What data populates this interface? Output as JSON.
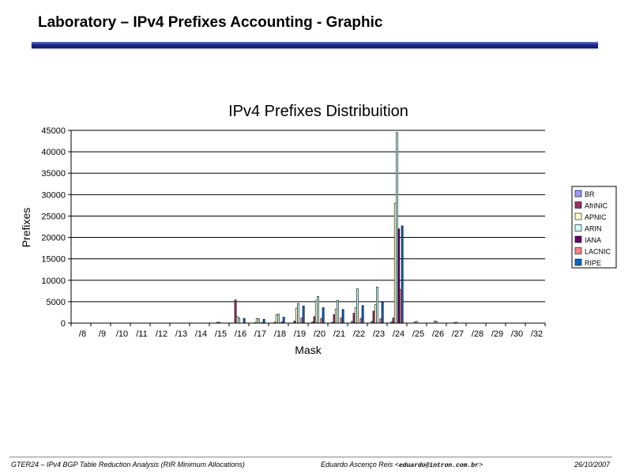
{
  "header": {
    "title": "Laboratory – IPv4 Prefixes Accounting - Graphic"
  },
  "footer": {
    "left": "GTER24 – IPv4 BGP Table Reduction Analysis (RIR Minimum Allocations)",
    "author": "Eduardo Ascenço Reis <",
    "email": "eduardo@intron.com.br",
    "email_close": ">",
    "date": "26/10/2007"
  },
  "chart_data": {
    "type": "bar",
    "title": "IPv4 Prefixes Distribuition",
    "xlabel": "Mask",
    "ylabel": "Prefixes",
    "ylim": [
      0,
      45000
    ],
    "yticks": [
      0,
      5000,
      10000,
      15000,
      20000,
      25000,
      30000,
      35000,
      40000,
      45000
    ],
    "grid": true,
    "legend_position": "right",
    "categories": [
      "/8",
      "/9",
      "/10",
      "/11",
      "/12",
      "/13",
      "/14",
      "/15",
      "/16",
      "/17",
      "/18",
      "/19",
      "/20",
      "/21",
      "/22",
      "/23",
      "/24",
      "/25",
      "/26",
      "/27",
      "/28",
      "/29",
      "/30",
      "/32"
    ],
    "series": [
      {
        "name": "BR",
        "color": "#9999ff",
        "values": [
          0,
          0,
          0,
          0,
          0,
          0,
          0,
          0,
          0,
          0,
          0,
          0,
          300,
          200,
          400,
          400,
          300,
          0,
          0,
          0,
          0,
          0,
          0,
          0
        ]
      },
      {
        "name": "AfriNIC",
        "color": "#993366",
        "values": [
          0,
          0,
          0,
          0,
          0,
          0,
          0,
          0,
          5400,
          100,
          200,
          500,
          1500,
          2000,
          2300,
          2800,
          1200,
          0,
          0,
          0,
          0,
          0,
          0,
          0
        ]
      },
      {
        "name": "APNIC",
        "color": "#ffffcc",
        "values": [
          0,
          0,
          0,
          0,
          0,
          0,
          0,
          200,
          1500,
          1100,
          2000,
          3500,
          5200,
          3300,
          3600,
          4300,
          28000,
          300,
          500,
          100,
          0,
          0,
          0,
          0
        ]
      },
      {
        "name": "ARIN",
        "color": "#ccffff",
        "values": [
          0,
          0,
          0,
          0,
          0,
          0,
          0,
          200,
          1200,
          1000,
          2100,
          4600,
          6200,
          5300,
          8000,
          8400,
          44500,
          400,
          400,
          200,
          0,
          0,
          0,
          0
        ]
      },
      {
        "name": "IANA",
        "color": "#660066",
        "values": [
          0,
          0,
          0,
          0,
          0,
          0,
          0,
          0,
          0,
          0,
          0,
          0,
          0,
          0,
          0,
          0,
          22000,
          0,
          0,
          0,
          0,
          0,
          0,
          0
        ]
      },
      {
        "name": "LACNIC",
        "color": "#ff8080",
        "values": [
          0,
          0,
          0,
          0,
          0,
          0,
          0,
          0,
          0,
          100,
          300,
          1200,
          1100,
          1200,
          1100,
          1000,
          7800,
          0,
          0,
          0,
          0,
          0,
          0,
          0
        ]
      },
      {
        "name": "RIPE",
        "color": "#0066cc",
        "values": [
          0,
          0,
          0,
          0,
          0,
          0,
          0,
          0,
          1100,
          900,
          1400,
          4000,
          3600,
          3200,
          4100,
          4900,
          22700,
          0,
          0,
          0,
          0,
          0,
          0,
          0
        ]
      }
    ]
  }
}
